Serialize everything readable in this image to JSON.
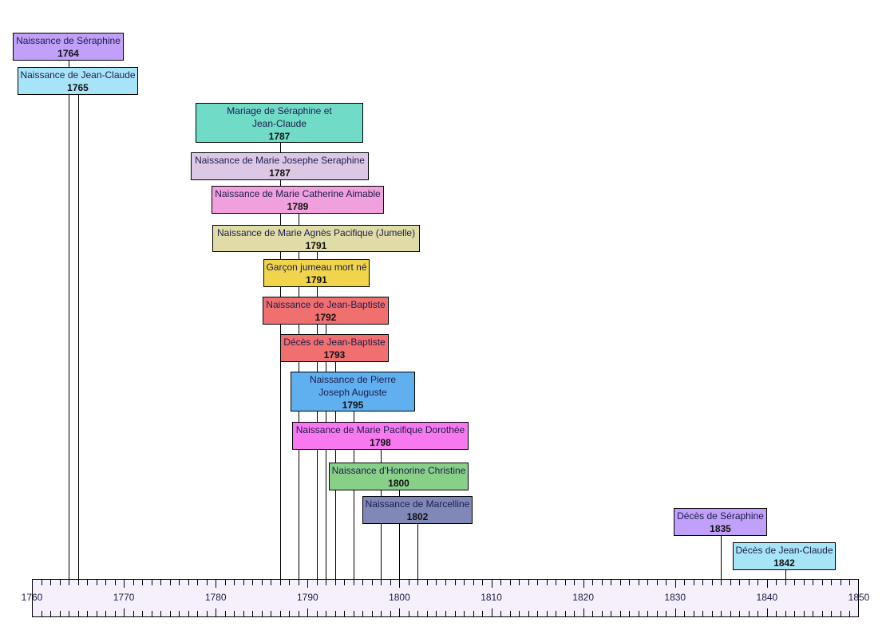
{
  "events": [
    {
      "label": "Naissance de Séraphine",
      "year": 1764,
      "color": "#c0a0f8"
    },
    {
      "label": "Naissance de Jean-Claude",
      "year": 1765,
      "color": "#a8e4f8"
    },
    {
      "label": "Mariage de Séraphine et Jean-Claude",
      "year": 1787,
      "color": "#70dcc8"
    },
    {
      "label": "Naissance de Marie Josephe Seraphine",
      "year": 1787,
      "color": "#dcc8e4"
    },
    {
      "label": "Naissance de Marie Catherine Aimable",
      "year": 1789,
      "color": "#f0a0dc"
    },
    {
      "label": "Naissance de Marie Agnès Pacifique (Jumelle)",
      "year": 1791,
      "color": "#e0dca8"
    },
    {
      "label": "Garçon jumeau mort né",
      "year": 1791,
      "color": "#f0d44c"
    },
    {
      "label": "Naissance de Jean-Baptiste",
      "year": 1792,
      "color": "#f07070"
    },
    {
      "label": "Décès de Jean-Baptiste",
      "year": 1793,
      "color": "#f07070"
    },
    {
      "label": "Naissance de Pierre Joseph Auguste",
      "year": 1795,
      "color": "#60b0f0"
    },
    {
      "label": "Naissance de Marie Pacifique Dorothée",
      "year": 1798,
      "color": "#f878f0"
    },
    {
      "label": "Naissance d'Honorine Christine",
      "year": 1800,
      "color": "#88d088"
    },
    {
      "label": "Naissance de Marcelline",
      "year": 1802,
      "color": "#8088b8"
    },
    {
      "label": "Décès de Séraphine",
      "year": 1835,
      "color": "#c0a0f8"
    },
    {
      "label": "Décès de Jean-Claude",
      "year": 1842,
      "color": "#a8e4f8"
    }
  ],
  "axis": {
    "min": 1760,
    "max": 1850,
    "major_step": 10,
    "minor_step": 1,
    "labels": [
      "1760",
      "1770",
      "1780",
      "1790",
      "1800",
      "1810",
      "1820",
      "1830",
      "1840",
      "1850"
    ],
    "color": "#f6f0fc"
  }
}
